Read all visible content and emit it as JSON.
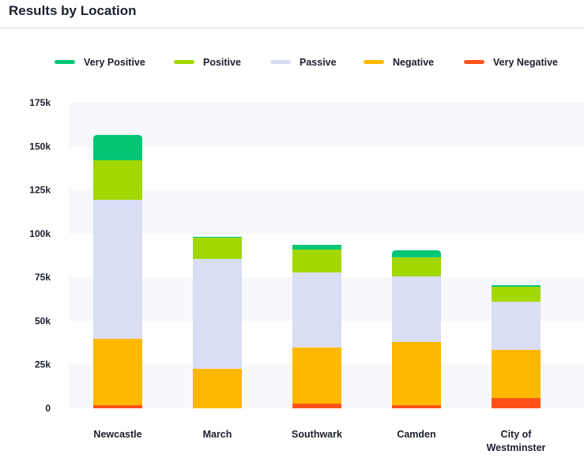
{
  "header": {
    "title": "Results by Location"
  },
  "chart_data": {
    "type": "bar",
    "stacked": true,
    "title": "Results by Location",
    "categories": [
      "Newcastle",
      "March",
      "Southwark",
      "Camden",
      "City of Westminster"
    ],
    "series": [
      {
        "name": "Very Negative",
        "color": "#ff5219",
        "values": [
          1800,
          0,
          2700,
          1800,
          5900
        ]
      },
      {
        "name": "Negative",
        "color": "#ffb800",
        "values": [
          38000,
          22600,
          32100,
          36200,
          27600
        ]
      },
      {
        "name": "Passive",
        "color": "#d9def5",
        "values": [
          79600,
          62900,
          43000,
          37500,
          27500
        ]
      },
      {
        "name": "Positive",
        "color": "#a2d800",
        "values": [
          22600,
          12200,
          13100,
          10900,
          8600
        ]
      },
      {
        "name": "Very Positive",
        "color": "#05c675",
        "values": [
          14500,
          500,
          2700,
          4100,
          900
        ]
      }
    ],
    "legend_order": [
      "Very Positive",
      "Positive",
      "Passive",
      "Negative",
      "Very Negative"
    ],
    "legend_position": "top",
    "ylim": [
      0,
      175000
    ],
    "yticks": [
      {
        "v": 0,
        "label": "0"
      },
      {
        "v": 25000,
        "label": "25k"
      },
      {
        "v": 50000,
        "label": "50k"
      },
      {
        "v": 75000,
        "label": "75k"
      },
      {
        "v": 100000,
        "label": "100k"
      },
      {
        "v": 125000,
        "label": "125k"
      },
      {
        "v": 150000,
        "label": "150k"
      },
      {
        "v": 175000,
        "label": "175k"
      }
    ],
    "xlabel": "",
    "ylabel": ""
  }
}
